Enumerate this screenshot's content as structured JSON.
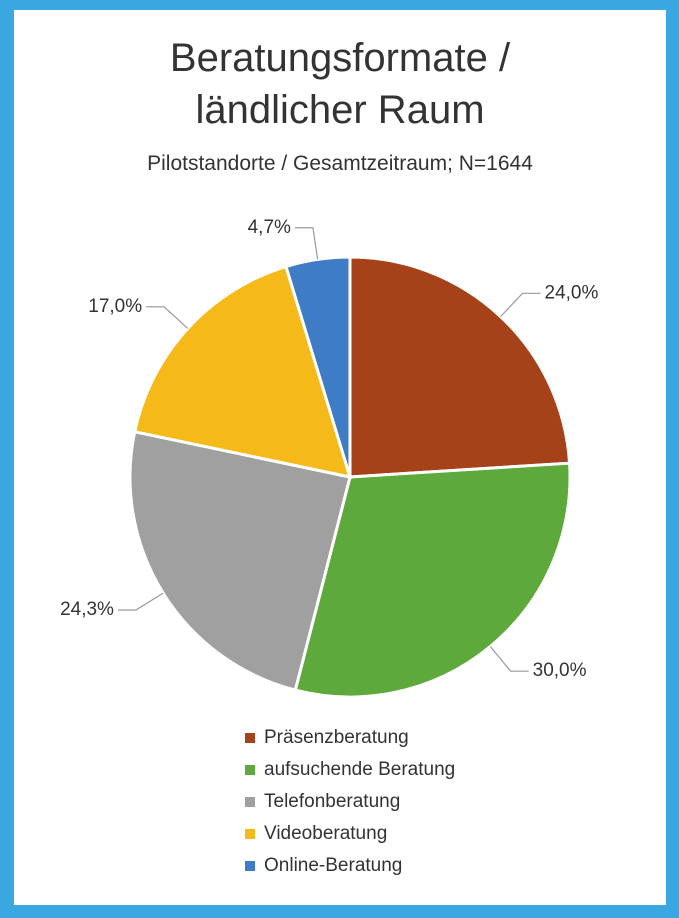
{
  "chart_data": {
    "type": "pie",
    "title": "Beratungsformate / ländlicher Raum",
    "subtitle": "Pilotstandorte / Gesamtzeitraum; N=1644",
    "categories": [
      "Präsenzberatung",
      "aufsuchende Beratung",
      "Telefonberatung",
      "Videoberatung",
      "Online-Beratung"
    ],
    "values": [
      24.0,
      30.0,
      24.3,
      17.0,
      4.7
    ],
    "value_labels": [
      "24,0%",
      "30,0%",
      "24,3%",
      "17,0%",
      "4,7%"
    ],
    "colors": [
      "#a5421a",
      "#5ea93b",
      "#a0a0a0",
      "#f6b91a",
      "#3f7cc6"
    ],
    "legend": "bottom"
  }
}
